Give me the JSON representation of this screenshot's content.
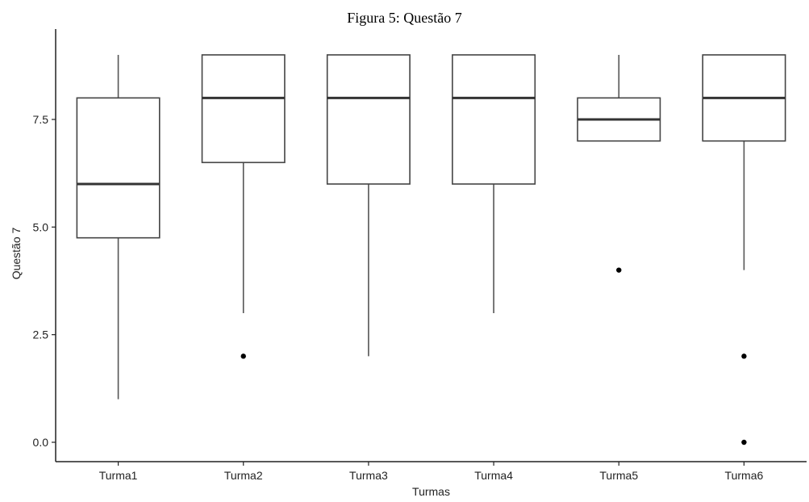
{
  "caption": "Figura 5: Questão 7",
  "chart_data": {
    "type": "box",
    "xlabel": "Turmas",
    "ylabel": "Questão 7",
    "ylim": [
      -0.45,
      9.6
    ],
    "yticks": [
      0.0,
      2.5,
      5.0,
      7.5
    ],
    "ytick_labels": [
      "0.0",
      "2.5",
      "5.0",
      "7.5"
    ],
    "grid": false,
    "categories": [
      "Turma1",
      "Turma2",
      "Turma3",
      "Turma4",
      "Turma5",
      "Turma6"
    ],
    "boxes": [
      {
        "category": "Turma1",
        "whisker_low": 1,
        "q1": 4.75,
        "median": 6,
        "q3": 8,
        "whisker_high": 9,
        "outliers": []
      },
      {
        "category": "Turma2",
        "whisker_low": 3,
        "q1": 6.5,
        "median": 8,
        "q3": 9,
        "whisker_high": 9,
        "outliers": [
          2
        ]
      },
      {
        "category": "Turma3",
        "whisker_low": 2,
        "q1": 6,
        "median": 8,
        "q3": 9,
        "whisker_high": 9,
        "outliers": []
      },
      {
        "category": "Turma4",
        "whisker_low": 3,
        "q1": 6,
        "median": 8,
        "q3": 9,
        "whisker_high": 9,
        "outliers": []
      },
      {
        "category": "Turma5",
        "whisker_low": 7,
        "q1": 7,
        "median": 7.5,
        "q3": 8,
        "whisker_high": 9,
        "outliers": [
          4
        ]
      },
      {
        "category": "Turma6",
        "whisker_low": 4,
        "q1": 7,
        "median": 8,
        "q3": 9,
        "whisker_high": 9,
        "outliers": [
          2,
          0
        ]
      }
    ]
  }
}
